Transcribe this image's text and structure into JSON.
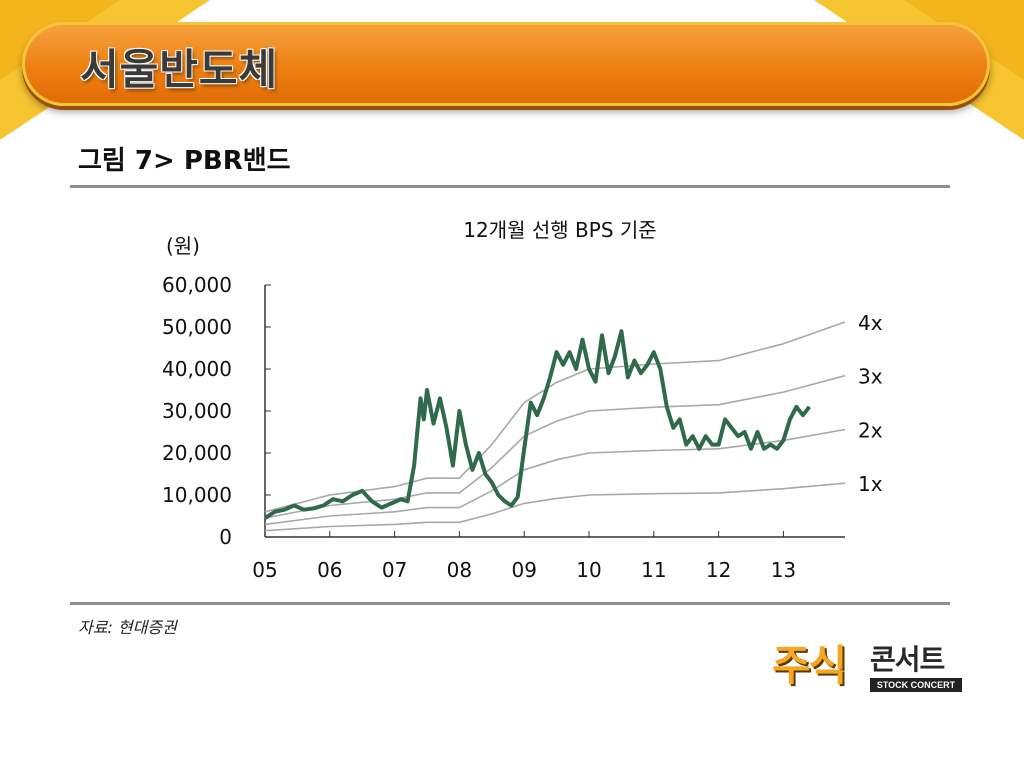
{
  "slide": {
    "title": "서울반도체",
    "figure_title": "그림 7> PBR밴드",
    "source": "자료: 현대증권"
  },
  "logo": {
    "big": "주식",
    "small": "콘서트",
    "sub": "STOCK CONCERT"
  },
  "colors": {
    "accent": "#ee7f12",
    "price": "#2f6b4a",
    "band": "#a8a8a8"
  },
  "chart_data": {
    "type": "line",
    "title": "12개월 선행 BPS 기준",
    "ylabel": "(원)",
    "ylim": [
      0,
      60000
    ],
    "xlim": [
      2005.0,
      2013.95
    ],
    "yticks": [
      0,
      10000,
      20000,
      30000,
      40000,
      50000,
      60000
    ],
    "ytick_labels": [
      "0",
      "10,000",
      "20,000",
      "30,000",
      "40,000",
      "50,000",
      "60,000"
    ],
    "xticks": [
      2005,
      2006,
      2007,
      2008,
      2009,
      2010,
      2011,
      2012,
      2013
    ],
    "xtick_labels": [
      "05",
      "06",
      "07",
      "08",
      "09",
      "10",
      "11",
      "12",
      "13"
    ],
    "grid": false,
    "series": [
      {
        "name": "1x",
        "x": [
          2005.0,
          2006.0,
          2007.0,
          2007.5,
          2008.0,
          2008.5,
          2009.0,
          2009.5,
          2010.0,
          2011.0,
          2012.0,
          2013.0,
          2013.95
        ],
        "values": [
          1500,
          2500,
          3000,
          3500,
          3500,
          5500,
          8000,
          9200,
          10000,
          10300,
          10500,
          11500,
          12800
        ]
      },
      {
        "name": "2x",
        "x": [
          2005.0,
          2006.0,
          2007.0,
          2007.5,
          2008.0,
          2008.5,
          2009.0,
          2009.5,
          2010.0,
          2011.0,
          2012.0,
          2013.0,
          2013.95
        ],
        "values": [
          3000,
          5000,
          6000,
          7000,
          7000,
          11000,
          16000,
          18400,
          20000,
          20600,
          21000,
          23000,
          25600
        ]
      },
      {
        "name": "3x",
        "x": [
          2005.0,
          2006.0,
          2007.0,
          2007.5,
          2008.0,
          2008.5,
          2009.0,
          2009.5,
          2010.0,
          2011.0,
          2012.0,
          2013.0,
          2013.95
        ],
        "values": [
          4500,
          7500,
          9000,
          10500,
          10500,
          16500,
          24000,
          27600,
          30000,
          30900,
          31500,
          34500,
          38400
        ]
      },
      {
        "name": "4x",
        "x": [
          2005.0,
          2006.0,
          2007.0,
          2007.5,
          2008.0,
          2008.5,
          2009.0,
          2009.5,
          2010.0,
          2011.0,
          2012.0,
          2013.0,
          2013.95
        ],
        "values": [
          6000,
          10000,
          12000,
          14000,
          14000,
          22000,
          32000,
          36800,
          40000,
          41200,
          42000,
          46000,
          51200
        ]
      },
      {
        "name": "",
        "x": [
          2005.0,
          2005.15,
          2005.3,
          2005.45,
          2005.6,
          2005.75,
          2005.9,
          2006.05,
          2006.2,
          2006.35,
          2006.5,
          2006.65,
          2006.8,
          2006.95,
          2007.1,
          2007.2,
          2007.3,
          2007.4,
          2007.45,
          2007.5,
          2007.6,
          2007.7,
          2007.8,
          2007.9,
          2008.0,
          2008.1,
          2008.2,
          2008.3,
          2008.4,
          2008.5,
          2008.6,
          2008.7,
          2008.8,
          2008.9,
          2009.0,
          2009.1,
          2009.2,
          2009.3,
          2009.4,
          2009.5,
          2009.6,
          2009.7,
          2009.8,
          2009.9,
          2010.0,
          2010.1,
          2010.2,
          2010.3,
          2010.4,
          2010.5,
          2010.6,
          2010.7,
          2010.8,
          2010.9,
          2011.0,
          2011.1,
          2011.2,
          2011.3,
          2011.4,
          2011.5,
          2011.6,
          2011.7,
          2011.8,
          2011.9,
          2012.0,
          2012.1,
          2012.2,
          2012.3,
          2012.4,
          2012.5,
          2012.6,
          2012.7,
          2012.8,
          2012.9,
          2013.0,
          2013.1,
          2013.2,
          2013.3,
          2013.4
        ],
        "values": [
          4500,
          6000,
          6500,
          7500,
          6500,
          6800,
          7500,
          9000,
          8500,
          10000,
          11000,
          8500,
          7000,
          8000,
          9000,
          8500,
          17000,
          33000,
          28000,
          35000,
          27000,
          33000,
          26000,
          17000,
          30000,
          22000,
          16000,
          20000,
          15000,
          13000,
          10000,
          8500,
          7500,
          9500,
          21000,
          32000,
          29000,
          33000,
          38000,
          44000,
          41000,
          44000,
          40000,
          47000,
          40000,
          37000,
          48000,
          39000,
          43000,
          49000,
          38000,
          42000,
          39000,
          41000,
          44000,
          40000,
          31000,
          26000,
          28000,
          22000,
          24000,
          21000,
          24000,
          22000,
          22000,
          28000,
          26000,
          24000,
          25000,
          21000,
          25000,
          21000,
          22000,
          21000,
          23000,
          28000,
          31000,
          29000,
          31000
        ]
      }
    ]
  }
}
